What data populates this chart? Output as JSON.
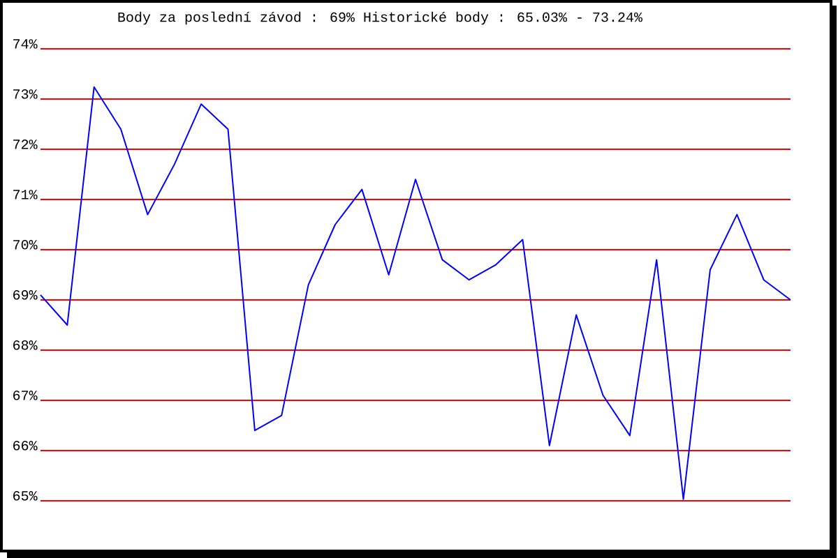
{
  "chart_data": {
    "type": "line",
    "title": "Body za poslední závod : 69%  Historické body : 65.03% - 73.24%",
    "categories": [
      null,
      null,
      null,
      null,
      null,
      null,
      null,
      null,
      null,
      null,
      null,
      null,
      null,
      null,
      null,
      null,
      null,
      null,
      null,
      null,
      null,
      null,
      null,
      null,
      null,
      null,
      null,
      null,
      null
    ],
    "series": [
      {
        "color": "#0000ff",
        "values": [
          69.1,
          68.5,
          73.24,
          72.4,
          70.7,
          71.7,
          72.9,
          72.4,
          66.4,
          66.7,
          69.3,
          70.5,
          71.2,
          69.5,
          71.4,
          69.8,
          69.4,
          69.7,
          70.2,
          66.1,
          68.7,
          67.1,
          66.3,
          69.8,
          65.03,
          69.6,
          70.7,
          69.4,
          69
        ]
      }
    ],
    "ylim": [
      65,
      74
    ],
    "yticks": [
      {
        "value": 65,
        "label": "65%"
      },
      {
        "value": 66,
        "label": "66%"
      },
      {
        "value": 67,
        "label": "67%"
      },
      {
        "value": 68,
        "label": "68%"
      },
      {
        "value": 69,
        "label": "69%"
      },
      {
        "value": 70,
        "label": "70%"
      },
      {
        "value": 71,
        "label": "71%"
      },
      {
        "value": 72,
        "label": "72%"
      },
      {
        "value": 73,
        "label": "73%"
      },
      {
        "value": 74,
        "label": "74%"
      }
    ],
    "grid": "y"
  }
}
